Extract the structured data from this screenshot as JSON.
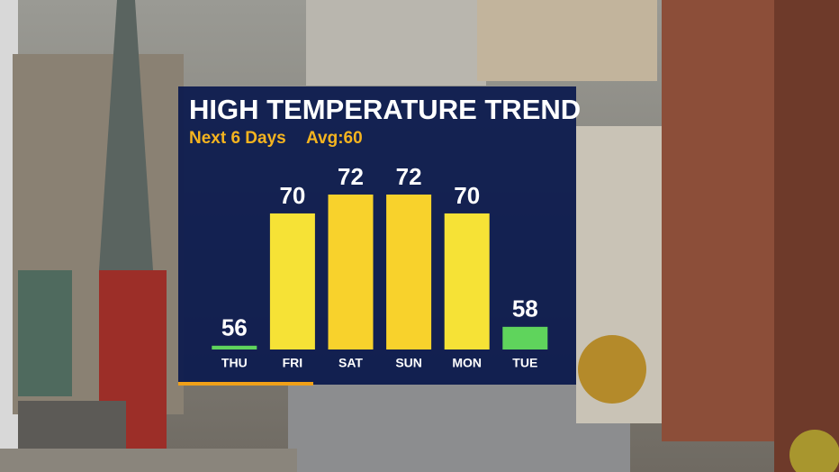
{
  "chart_data": {
    "type": "bar",
    "title": "HIGH TEMPERATURE TREND",
    "subtitle": "Next 6 Days",
    "annotation": "Avg:60",
    "categories": [
      "THU",
      "FRI",
      "SAT",
      "SUN",
      "MON",
      "TUE"
    ],
    "values": [
      56,
      70,
      72,
      72,
      70,
      58
    ],
    "colors": [
      "#5fd45c",
      "#f6e236",
      "#f8d22c",
      "#f8d22c",
      "#f6e236",
      "#5fd45c"
    ],
    "ylim": [
      55.6,
      74
    ]
  }
}
